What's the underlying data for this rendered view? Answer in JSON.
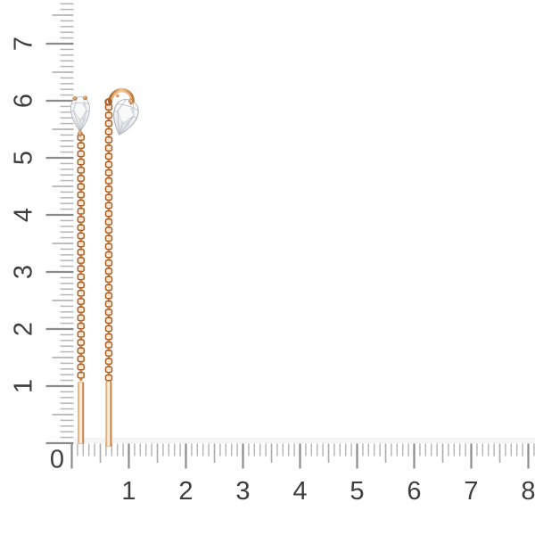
{
  "scene": {
    "type": "jewelry-product-photo",
    "subject": "rose-gold threader chain earrings with pear-cut diamonds",
    "background": "#ffffff"
  },
  "rulers": {
    "vertical": {
      "labels_top_to_bottom": [
        "7",
        "6",
        "5",
        "4",
        "3",
        "2",
        "1"
      ]
    },
    "horizontal": {
      "labels_left_to_right": [
        "0",
        "1",
        "2",
        "3",
        "4",
        "5",
        "6",
        "7",
        "8"
      ]
    },
    "colors": {
      "minor_tick": "#b7b7b7",
      "half_tick": "#a9a9a9",
      "major_tick": "#8b8b8b",
      "number": "#3e3e3e",
      "edge_band": "#f1f1f1"
    }
  },
  "jewelry": {
    "gold": {
      "dark": "#a9602b",
      "deep": "#bf7c3a",
      "mid": "#cf8347",
      "light": "#f3c795",
      "pale": "#fdf3e4",
      "link_fill": "#f7ead3"
    },
    "diamond": {
      "bright": "#ffffff",
      "base": "#eef1f3",
      "shade": "#d9dee2",
      "line": "#b2b9c0",
      "facet": "#f7f9fa"
    }
  }
}
